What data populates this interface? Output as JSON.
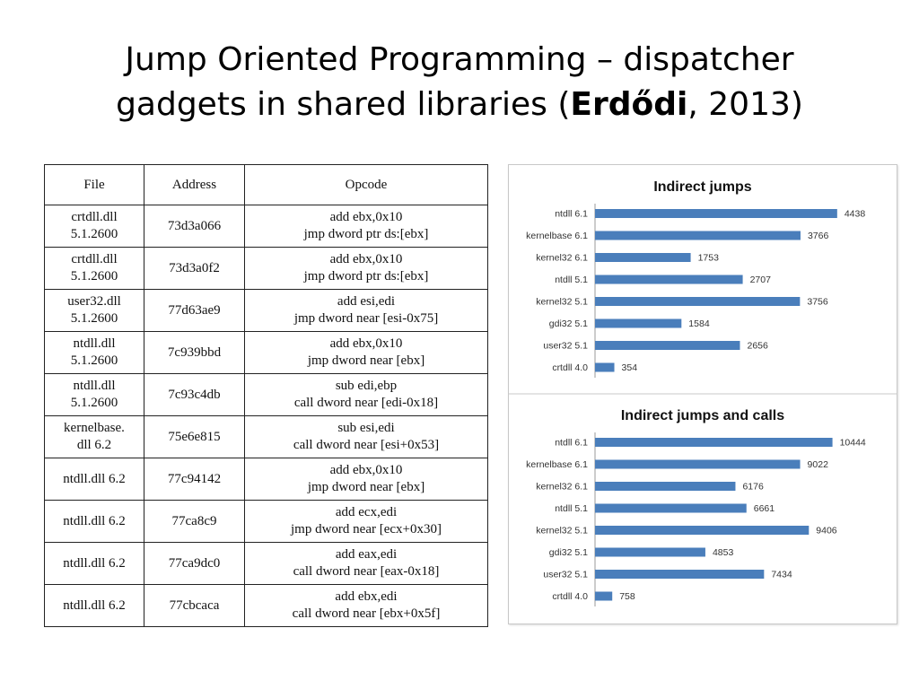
{
  "slide": {
    "title_line1": "Jump Oriented Programming –  dispatcher",
    "title_line2_pre": "gadgets in shared libraries (",
    "title_line2_bold": "Erdődi",
    "title_line2_post": ", 2013)"
  },
  "table": {
    "headers": [
      "File",
      "Address",
      "Opcode"
    ],
    "rows": [
      {
        "file": [
          "crtdll.dll",
          "5.1.2600"
        ],
        "address": "73d3a066",
        "opcode": [
          "add ebx,0x10",
          "jmp dword ptr ds:[ebx]"
        ]
      },
      {
        "file": [
          "crtdll.dll",
          "5.1.2600"
        ],
        "address": "73d3a0f2",
        "opcode": [
          "add ebx,0x10",
          "jmp dword ptr ds:[ebx]"
        ]
      },
      {
        "file": [
          "user32.dll",
          "5.1.2600"
        ],
        "address": "77d63ae9",
        "opcode": [
          "add esi,edi",
          "jmp dword near [esi-0x75]"
        ]
      },
      {
        "file": [
          "ntdll.dll",
          "5.1.2600"
        ],
        "address": "7c939bbd",
        "opcode": [
          "add ebx,0x10",
          "jmp dword near [ebx]"
        ]
      },
      {
        "file": [
          "ntdll.dll",
          "5.1.2600"
        ],
        "address": "7c93c4db",
        "opcode": [
          "sub edi,ebp",
          "call dword near [edi-0x18]"
        ]
      },
      {
        "file": [
          "kernelbase.",
          "dll 6.2"
        ],
        "address": "75e6e815",
        "opcode": [
          "sub esi,edi",
          "call dword near [esi+0x53]"
        ]
      },
      {
        "file": [
          "ntdll.dll 6.2"
        ],
        "address": "77c94142",
        "opcode": [
          "add ebx,0x10",
          "jmp dword near [ebx]"
        ]
      },
      {
        "file": [
          "ntdll.dll 6.2"
        ],
        "address": "77ca8c9",
        "opcode": [
          "add ecx,edi",
          "jmp dword near [ecx+0x30]"
        ]
      },
      {
        "file": [
          "ntdll.dll 6.2"
        ],
        "address": "77ca9dc0",
        "opcode": [
          "add eax,edi",
          "call dword near [eax-0x18]"
        ]
      },
      {
        "file": [
          "ntdll.dll 6.2"
        ],
        "address": "77cbcaca",
        "opcode": [
          "add ebx,edi",
          "call dword near [ebx+0x5f]"
        ]
      }
    ]
  },
  "chart_data": [
    {
      "type": "bar",
      "orientation": "horizontal",
      "title": "Indirect jumps",
      "categories": [
        "ntdll 6.1",
        "kernelbase 6.1",
        "kernel32 6.1",
        "ntdll 5.1",
        "kernel32 5.1",
        "gdi32 5.1",
        "user32 5.1",
        "crtdll 4.0"
      ],
      "values": [
        4438,
        3766,
        1753,
        2707,
        3756,
        1584,
        2656,
        354
      ],
      "xlim": [
        0,
        5000
      ],
      "grid": false,
      "legend": false,
      "bar_color": "#4a7ebb"
    },
    {
      "type": "bar",
      "orientation": "horizontal",
      "title": "Indirect jumps and calls",
      "categories": [
        "ntdll 6.1",
        "kernelbase 6.1",
        "kernel32 6.1",
        "ntdll 5.1",
        "kernel32 5.1",
        "gdi32 5.1",
        "user32 5.1",
        "crtdll 4.0"
      ],
      "values": [
        10444,
        9022,
        6176,
        6661,
        9406,
        4853,
        7434,
        758
      ],
      "xlim": [
        0,
        12000
      ],
      "grid": false,
      "legend": false,
      "bar_color": "#4a7ebb"
    }
  ]
}
